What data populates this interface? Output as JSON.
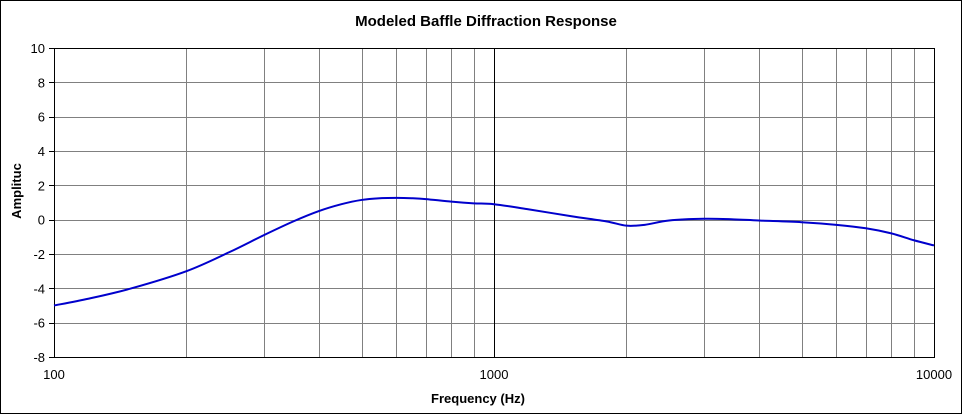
{
  "chart_data": {
    "type": "line",
    "title": "Modeled Baffle Diffraction Response",
    "xlabel": "Frequency (Hz)",
    "ylabel": "Amplituc",
    "xscale": "log",
    "xlim": [
      100,
      10000
    ],
    "ylim": [
      -8,
      10
    ],
    "x_tick_labels": [
      "100",
      "1000",
      "10000"
    ],
    "y_tick_labels": [
      "-8",
      "-6",
      "-4",
      "-2",
      "0",
      "2",
      "4",
      "6",
      "8",
      "10"
    ],
    "grid": true,
    "legend": "none",
    "line_color": "#0000cc",
    "series": [
      {
        "x": [
          100,
          120,
          150,
          200,
          250,
          300,
          350,
          400,
          450,
          500,
          550,
          600,
          650,
          700,
          800,
          900,
          1000,
          1200,
          1500,
          1800,
          2000,
          2200,
          2500,
          3000,
          3500,
          4000,
          5000,
          6000,
          7000,
          8000,
          9000,
          10000
        ],
        "values": [
          -5.0,
          -4.6,
          -4.0,
          -3.0,
          -1.9,
          -0.9,
          -0.1,
          0.5,
          0.9,
          1.15,
          1.25,
          1.27,
          1.25,
          1.2,
          1.05,
          0.95,
          0.9,
          0.6,
          0.2,
          -0.1,
          -0.35,
          -0.3,
          -0.05,
          0.05,
          0.02,
          -0.05,
          -0.15,
          -0.3,
          -0.5,
          -0.8,
          -1.2,
          -1.5
        ]
      }
    ]
  }
}
